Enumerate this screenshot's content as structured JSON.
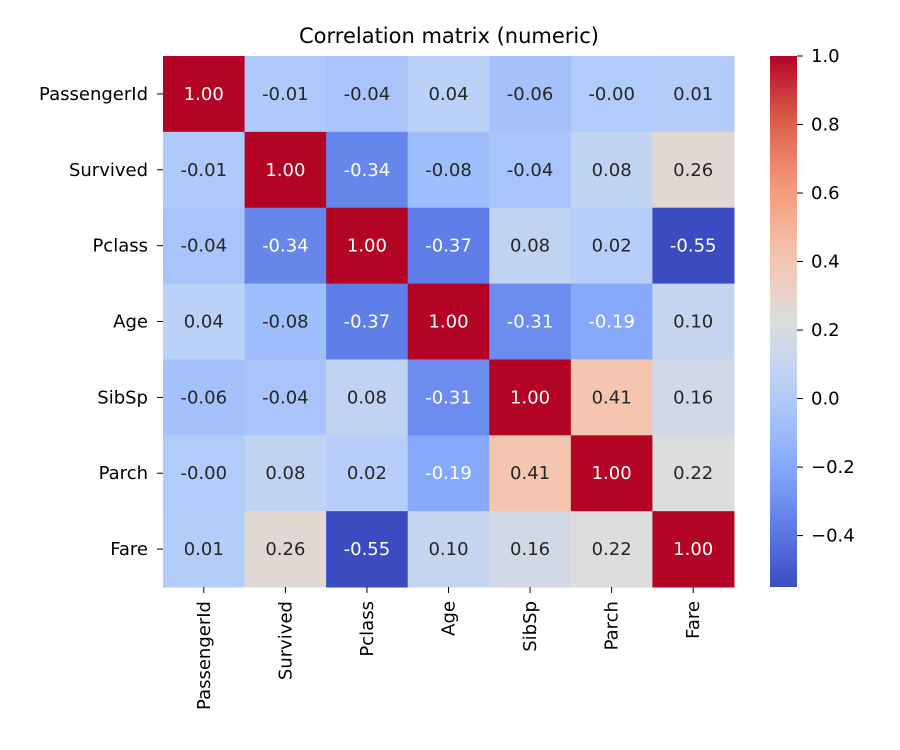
{
  "chart_data": {
    "type": "heatmap",
    "title": "Correlation matrix (numeric)",
    "row_labels": [
      "PassengerId",
      "Survived",
      "Pclass",
      "Age",
      "SibSp",
      "Parch",
      "Fare"
    ],
    "col_labels": [
      "PassengerId",
      "Survived",
      "Pclass",
      "Age",
      "SibSp",
      "Parch",
      "Fare"
    ],
    "values": [
      [
        1.0,
        -0.01,
        -0.04,
        0.04,
        -0.06,
        -0.0,
        0.01
      ],
      [
        -0.01,
        1.0,
        -0.34,
        -0.08,
        -0.04,
        0.08,
        0.26
      ],
      [
        -0.04,
        -0.34,
        1.0,
        -0.37,
        0.08,
        0.02,
        -0.55
      ],
      [
        0.04,
        -0.08,
        -0.37,
        1.0,
        -0.31,
        -0.19,
        0.1
      ],
      [
        -0.06,
        -0.04,
        0.08,
        -0.31,
        1.0,
        0.41,
        0.16
      ],
      [
        -0.0,
        0.08,
        0.02,
        -0.19,
        0.41,
        1.0,
        0.22
      ],
      [
        0.01,
        0.26,
        -0.55,
        0.1,
        0.16,
        0.22,
        1.0
      ]
    ],
    "cell_labels": [
      [
        "1.00",
        "-0.01",
        "-0.04",
        "0.04",
        "-0.06",
        "-0.00",
        "0.01"
      ],
      [
        "-0.01",
        "1.00",
        "-0.34",
        "-0.08",
        "-0.04",
        "0.08",
        "0.26"
      ],
      [
        "-0.04",
        "-0.34",
        "1.00",
        "-0.37",
        "0.08",
        "0.02",
        "-0.55"
      ],
      [
        "0.04",
        "-0.08",
        "-0.37",
        "1.00",
        "-0.31",
        "-0.19",
        "0.10"
      ],
      [
        "-0.06",
        "-0.04",
        "0.08",
        "-0.31",
        "1.00",
        "0.41",
        "0.16"
      ],
      [
        "-0.00",
        "0.08",
        "0.02",
        "-0.19",
        "0.41",
        "1.00",
        "0.22"
      ],
      [
        "0.01",
        "0.26",
        "-0.55",
        "0.10",
        "0.16",
        "0.22",
        "1.00"
      ]
    ],
    "colormap": "coolwarm",
    "vmin": -0.55,
    "vmax": 1.0,
    "colorbar": {
      "ticks": [
        1.0,
        0.8,
        0.6,
        0.4,
        0.2,
        0.0,
        -0.2,
        -0.4
      ],
      "tick_labels": [
        "1.0",
        "0.8",
        "0.6",
        "0.4",
        "0.2",
        "0.0",
        "−0.2",
        "−0.4"
      ]
    },
    "grid": false
  }
}
